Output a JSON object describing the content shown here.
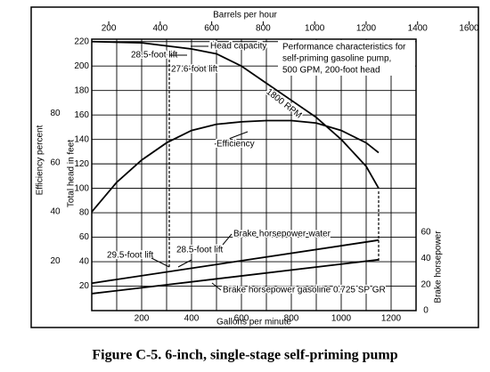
{
  "chart_data": {
    "type": "line",
    "caption": "Figure C-5.  6-inch, single-stage self-priming pump",
    "xlabel": "Gallons per minute",
    "x2label": "Barrels per hour",
    "ylabel": "Total head in feet",
    "y2label": "Efficiency percent",
    "y3label": "Brake horsepower",
    "xlim": [
      0,
      1300
    ],
    "xticks": [
      200,
      400,
      600,
      800,
      1000,
      1200
    ],
    "xgrid": [
      100,
      200,
      300,
      400,
      500,
      600,
      700,
      800,
      900,
      1000,
      1100,
      1200
    ],
    "x2lim": [
      134,
      1394
    ],
    "x2ticks": [
      200,
      400,
      600,
      800,
      1000,
      1200,
      1400,
      1600
    ],
    "ylim": [
      0,
      222
    ],
    "yticks": [
      20,
      40,
      60,
      80,
      100,
      120,
      140,
      160,
      180,
      200,
      220
    ],
    "y2lim": [
      0,
      110
    ],
    "y2ticks": [
      20,
      40,
      60,
      80
    ],
    "y3lim": [
      0,
      208
    ],
    "y3ticks": [
      0,
      20,
      40,
      60
    ],
    "grid": true,
    "series": [
      {
        "name": "Head capacity",
        "color": "#000",
        "axis": "y",
        "x": [
          0,
          200,
          400,
          500,
          600,
          700,
          800,
          900,
          1000,
          1100,
          1150
        ],
        "values": [
          220,
          219,
          214,
          210,
          200,
          186,
          172,
          158,
          140,
          118,
          100
        ]
      },
      {
        "name": "Efficiency",
        "color": "#000",
        "axis": "y2",
        "x": [
          0,
          100,
          200,
          300,
          400,
          500,
          600,
          700,
          800,
          900,
          1000,
          1100,
          1150
        ],
        "values": [
          40,
          52,
          61,
          68,
          73,
          75.5,
          76.5,
          77,
          77,
          76,
          73,
          68,
          64
        ]
      },
      {
        "name": "Brake horsepower-water",
        "color": "#000",
        "axis": "y3",
        "x": [
          0,
          1150
        ],
        "values": [
          21,
          54
        ]
      },
      {
        "name": "Brake horsepower gasoline 0.725 SP GR",
        "color": "#000",
        "axis": "y3",
        "x": [
          0,
          1150
        ],
        "values": [
          13,
          39
        ]
      }
    ],
    "annotations": [
      "1800 RPM",
      "Performance characteristics for",
      "self-priming gasoline pump,",
      "500 GPM, 200-foot head",
      "28.5-foot lift",
      "27.6-foot lift",
      "28.5-foot lift",
      "29.5-foot lift"
    ]
  }
}
